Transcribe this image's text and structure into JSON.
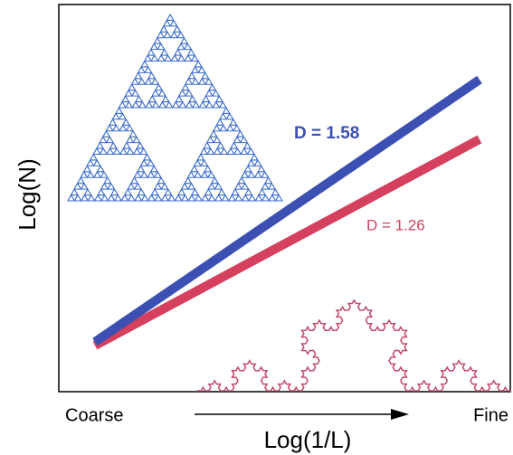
{
  "y_axis_label": "Log(N)",
  "x_axis_label": "Log(1/L)",
  "x_start_label": "Coarse",
  "x_end_label": "Fine",
  "annotations": [
    "D = 1.58",
    "D = 1.26"
  ]
}
